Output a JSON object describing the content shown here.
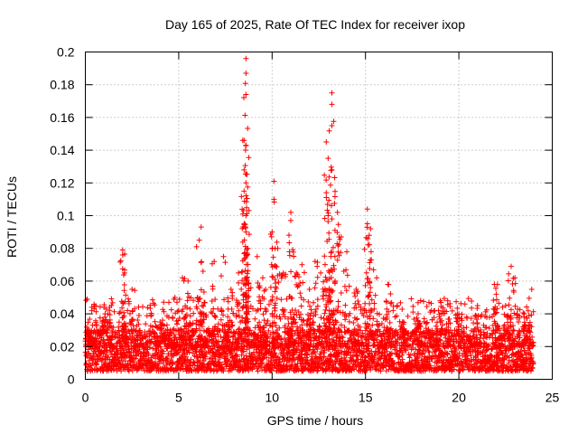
{
  "chart_data": {
    "type": "scatter",
    "title": "Day 165 of 2025, Rate Of TEC Index for receiver ixop",
    "xlabel": "GPS time / hours",
    "ylabel": "ROTI / TECUs",
    "xlim": [
      0,
      25
    ],
    "ylim": [
      0,
      0.2
    ],
    "xticks": [
      "0",
      "5",
      "10",
      "15",
      "20",
      "25"
    ],
    "yticks": [
      "0",
      "0.02",
      "0.04",
      "0.06",
      "0.08",
      "0.1",
      "0.12",
      "0.14",
      "0.16",
      "0.18",
      "0.2"
    ],
    "grid": true,
    "marker": "+",
    "color": "#ff0000",
    "series": [
      {
        "name": "ROTI",
        "baseline_range": [
          0.005,
          0.03
        ],
        "data_span_hours": [
          0,
          24
        ],
        "notable_points": [
          {
            "x": 0.2,
            "y": 0.027
          },
          {
            "x": 1.0,
            "y": 0.044
          },
          {
            "x": 1.2,
            "y": 0.04
          },
          {
            "x": 2.0,
            "y": 0.079
          },
          {
            "x": 2.0,
            "y": 0.076
          },
          {
            "x": 2.1,
            "y": 0.065
          },
          {
            "x": 2.5,
            "y": 0.055
          },
          {
            "x": 4.0,
            "y": 0.035
          },
          {
            "x": 4.8,
            "y": 0.05
          },
          {
            "x": 5.2,
            "y": 0.062
          },
          {
            "x": 5.5,
            "y": 0.06
          },
          {
            "x": 6.1,
            "y": 0.085
          },
          {
            "x": 6.2,
            "y": 0.093
          },
          {
            "x": 6.3,
            "y": 0.066
          },
          {
            "x": 6.9,
            "y": 0.072
          },
          {
            "x": 7.4,
            "y": 0.075
          },
          {
            "x": 7.8,
            "y": 0.055
          },
          {
            "x": 8.2,
            "y": 0.065
          },
          {
            "x": 8.5,
            "y": 0.146
          },
          {
            "x": 8.5,
            "y": 0.128
          },
          {
            "x": 8.5,
            "y": 0.115
          },
          {
            "x": 8.6,
            "y": 0.196
          },
          {
            "x": 8.6,
            "y": 0.187
          },
          {
            "x": 8.6,
            "y": 0.174
          },
          {
            "x": 8.6,
            "y": 0.143
          },
          {
            "x": 8.6,
            "y": 0.12
          },
          {
            "x": 8.6,
            "y": 0.1
          },
          {
            "x": 8.6,
            "y": 0.09
          },
          {
            "x": 8.7,
            "y": 0.08
          },
          {
            "x": 9.2,
            "y": 0.075
          },
          {
            "x": 9.5,
            "y": 0.062
          },
          {
            "x": 10.0,
            "y": 0.09
          },
          {
            "x": 10.1,
            "y": 0.121
          },
          {
            "x": 10.1,
            "y": 0.11
          },
          {
            "x": 10.3,
            "y": 0.08
          },
          {
            "x": 10.6,
            "y": 0.065
          },
          {
            "x": 11.0,
            "y": 0.102
          },
          {
            "x": 11.0,
            "y": 0.097
          },
          {
            "x": 11.3,
            "y": 0.065
          },
          {
            "x": 11.6,
            "y": 0.07
          },
          {
            "x": 12.0,
            "y": 0.055
          },
          {
            "x": 12.3,
            "y": 0.072
          },
          {
            "x": 12.6,
            "y": 0.065
          },
          {
            "x": 12.9,
            "y": 0.145
          },
          {
            "x": 13.0,
            "y": 0.135
          },
          {
            "x": 12.9,
            "y": 0.114
          },
          {
            "x": 13.0,
            "y": 0.1
          },
          {
            "x": 13.2,
            "y": 0.175
          },
          {
            "x": 13.2,
            "y": 0.168
          },
          {
            "x": 13.2,
            "y": 0.155
          },
          {
            "x": 13.2,
            "y": 0.128
          },
          {
            "x": 13.2,
            "y": 0.098
          },
          {
            "x": 13.5,
            "y": 0.102
          },
          {
            "x": 13.7,
            "y": 0.087
          },
          {
            "x": 14.0,
            "y": 0.078
          },
          {
            "x": 14.5,
            "y": 0.055
          },
          {
            "x": 15.1,
            "y": 0.104
          },
          {
            "x": 15.1,
            "y": 0.095
          },
          {
            "x": 15.2,
            "y": 0.088
          },
          {
            "x": 15.3,
            "y": 0.078
          },
          {
            "x": 15.6,
            "y": 0.062
          },
          {
            "x": 16.2,
            "y": 0.058
          },
          {
            "x": 17.0,
            "y": 0.035
          },
          {
            "x": 17.8,
            "y": 0.036
          },
          {
            "x": 18.4,
            "y": 0.047
          },
          {
            "x": 19.0,
            "y": 0.048
          },
          {
            "x": 19.4,
            "y": 0.048
          },
          {
            "x": 20.0,
            "y": 0.04
          },
          {
            "x": 21.0,
            "y": 0.045
          },
          {
            "x": 21.9,
            "y": 0.058
          },
          {
            "x": 22.0,
            "y": 0.052
          },
          {
            "x": 22.5,
            "y": 0.045
          },
          {
            "x": 22.8,
            "y": 0.069
          },
          {
            "x": 23.0,
            "y": 0.062
          },
          {
            "x": 23.5,
            "y": 0.04
          },
          {
            "x": 23.9,
            "y": 0.055
          }
        ]
      }
    ]
  }
}
